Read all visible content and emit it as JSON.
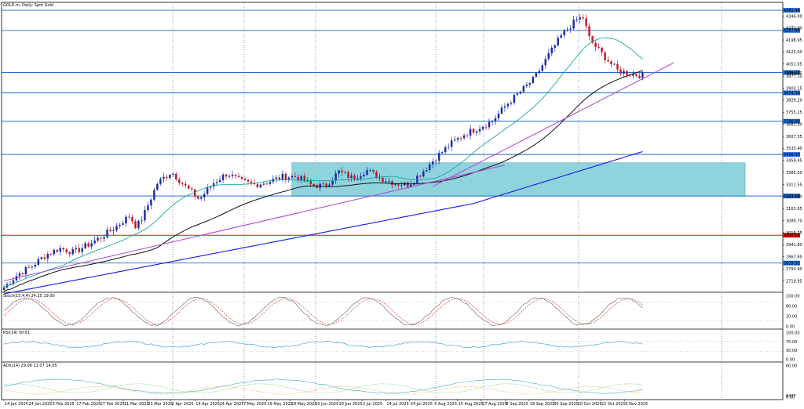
{
  "title": "GOLD.m, Daily:  Spot Gold",
  "colors": {
    "bg": "#ffffff",
    "axis": "#000000",
    "grid": "#000000",
    "hline": "#1e6fd6",
    "redline": "#e01010",
    "zone": "#8fd3dd",
    "bull": "#1a2ca8",
    "bear": "#c0182a",
    "ma_fast": "#19a6a0",
    "ma_mid": "#111111",
    "ma_slow": "#1a1ae0",
    "trend": "#b040d8",
    "stoch_main": "#777777",
    "stoch_signal": "#e23a3a",
    "rsi": "#4aa3e8",
    "adx": "#5ab8c8",
    "di_plus": "#7ccf6e",
    "di_minus": "#e8b35a"
  },
  "chart_data": {
    "type": "candlestick",
    "title": "GOLD.m, Daily:  Spot Gold",
    "ylim": [
      2650,
      4430
    ],
    "y_ticks": [
      "4346.00",
      "4272.90",
      "4198.95",
      "4125.00",
      "4051.05",
      "3977.10",
      "3903.15",
      "3829.20",
      "3755.25",
      "3681.30",
      "3607.35",
      "3533.40",
      "3459.45",
      "3385.50",
      "3311.55",
      "3237.60",
      "3163.65",
      "3089.70",
      "3015.75",
      "2941.80",
      "2867.85",
      "2793.90",
      "2719.95"
    ],
    "x_labels": [
      "14 Jan 2025",
      "24 Jan 2025",
      "5 Feb 2025",
      "17 Feb 2025",
      "27 Feb 2025",
      "11 Mar 2025",
      "21 Mar 2025",
      "2 Apr 2025",
      "14 Apr 2025",
      "24 Apr 2025",
      "7 May 2025",
      "19 May 2025",
      "29 May 2025",
      "10 Jun 2025",
      "20 Jun 2025",
      "2 Jul 2025",
      "14 Jul 2025",
      "24 Jul 2025",
      "5 Aug 2025",
      "15 Aug 2025",
      "27 Aug 2025",
      "8 Sep 2025",
      "18 Sep 2025",
      "30 Sep 2025",
      "10 Oct 2025",
      "22 Oct 2025",
      "3 Nov 2025"
    ],
    "n_bars": 205,
    "closes_key": [
      [
        0,
        2680
      ],
      [
        10,
        2760
      ],
      [
        20,
        2810
      ],
      [
        30,
        2880
      ],
      [
        40,
        2920
      ],
      [
        50,
        2895
      ],
      [
        60,
        2940
      ],
      [
        70,
        2990
      ],
      [
        80,
        3050
      ],
      [
        90,
        3120
      ],
      [
        95,
        3050
      ],
      [
        100,
        3120
      ],
      [
        110,
        3320
      ],
      [
        120,
        3390
      ],
      [
        130,
        3300
      ],
      [
        140,
        3220
      ],
      [
        150,
        3320
      ],
      [
        160,
        3380
      ],
      [
        170,
        3330
      ],
      [
        180,
        3310
      ],
      [
        190,
        3330
      ],
      [
        200,
        3360
      ],
      [
        210,
        3360
      ],
      [
        220,
        3310
      ],
      [
        230,
        3300
      ],
      [
        240,
        3390
      ],
      [
        250,
        3350
      ],
      [
        260,
        3400
      ],
      [
        270,
        3350
      ],
      [
        280,
        3320
      ],
      [
        290,
        3310
      ],
      [
        300,
        3390
      ],
      [
        310,
        3480
      ],
      [
        320,
        3560
      ],
      [
        330,
        3620
      ],
      [
        340,
        3660
      ],
      [
        350,
        3700
      ],
      [
        360,
        3800
      ],
      [
        370,
        3880
      ],
      [
        380,
        3960
      ],
      [
        390,
        4100
      ],
      [
        400,
        4230
      ],
      [
        410,
        4320
      ],
      [
        415,
        4340
      ],
      [
        420,
        4200
      ],
      [
        430,
        4100
      ],
      [
        440,
        4010
      ],
      [
        450,
        3990
      ],
      [
        460,
        3980
      ]
    ],
    "price_levels": [
      {
        "price": 4381.44,
        "label": "4381.44",
        "color": "#1e6fd6"
      },
      {
        "price": 4257.84,
        "label": "4257.84",
        "color": "#1e6fd6"
      },
      {
        "price": 3999.44,
        "label": "3999.44",
        "color": "#1e6fd6"
      },
      {
        "price": 3874.34,
        "label": "3874.34",
        "color": "#1e6fd6"
      },
      {
        "price": 3700.0,
        "label": "3700.00",
        "color": "#1e6fd6"
      },
      {
        "price": 3496.05,
        "label": "3496.05",
        "color": "#1e6fd6"
      },
      {
        "price": 3241.09,
        "label": "3241.09",
        "color": "#1e6fd6"
      },
      {
        "price": 3000.0,
        "label": "3000.00",
        "color": "#e01010"
      },
      {
        "price": 2829.32,
        "label": "2829.32",
        "color": "#1e6fd6"
      }
    ],
    "current_price": "3994.75",
    "zones": [
      {
        "from_bar": 92,
        "to_bar": 278,
        "high": 3445,
        "low": 3240
      },
      {
        "from_bar": 365,
        "to_bar": 465,
        "high": 4430,
        "low": 4340
      }
    ]
  },
  "indicators": {
    "stoch": {
      "label": "Stoch(15,4,4) 24.25 19.00",
      "ticks": [
        "100.00",
        "80.00",
        "20.00",
        "0.00"
      ]
    },
    "rsi": {
      "label": "RSI(14) 50.61",
      "ticks": [
        "100.00",
        "70.00",
        "30.00",
        "0.00"
      ]
    },
    "adx": {
      "label": "ADX(14) 29.06 11.07 14.05",
      "ticks": [
        "60.00",
        "0.00"
      ],
      "bottom_label": "9437"
    }
  }
}
